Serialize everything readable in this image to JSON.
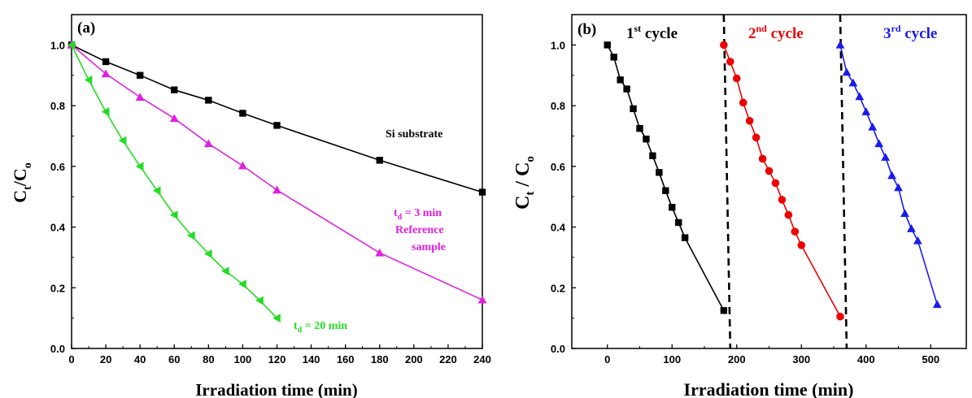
{
  "chart_data": [
    {
      "type": "line",
      "panel_label": "(a)",
      "xlabel": "Irradiation time (min)",
      "ylabel_main": "C",
      "ylabel_sub1": "t",
      "ylabel_mid": "/C",
      "ylabel_sub2": "o",
      "xlim": [
        0,
        240
      ],
      "ylim": [
        0,
        1.1
      ],
      "xticks": [
        "0",
        "20",
        "40",
        "60",
        "80",
        "100",
        "120",
        "140",
        "160",
        "180",
        "200",
        "220",
        "240"
      ],
      "yticks": [
        "0.0",
        "0.2",
        "0.4",
        "0.6",
        "0.8",
        "1.0"
      ],
      "series": [
        {
          "marker": "square",
          "color": "#000000",
          "x": [
            0,
            20,
            40,
            60,
            80,
            100,
            120,
            180,
            240
          ],
          "y": [
            1.0,
            0.945,
            0.9,
            0.852,
            0.818,
            0.775,
            0.735,
            0.62,
            0.515
          ]
        },
        {
          "marker": "triangle-up",
          "color": "#e020e0",
          "x": [
            0,
            20,
            40,
            60,
            80,
            100,
            120,
            180,
            240
          ],
          "y": [
            1.0,
            0.905,
            0.828,
            0.758,
            0.675,
            0.602,
            0.522,
            0.315,
            0.16
          ]
        },
        {
          "marker": "triangle-left",
          "color": "#22dd22",
          "x": [
            0,
            10,
            20,
            30,
            40,
            50,
            60,
            70,
            80,
            90,
            100,
            110,
            120
          ],
          "y": [
            1.0,
            0.885,
            0.78,
            0.685,
            0.6,
            0.52,
            0.44,
            0.372,
            0.312,
            0.255,
            0.212,
            0.158,
            0.1
          ]
        }
      ],
      "annotations": {
        "si_substrate": "Si substrate",
        "td3_main": "t",
        "td3_sub": "d",
        "td3_rest": " = 3 min",
        "reference": "Reference",
        "sample": "sample",
        "td20_main": "t",
        "td20_sub": "d",
        "td20_rest": " = 20 min"
      }
    },
    {
      "type": "line",
      "panel_label": "(b)",
      "xlabel": "Irradiation time (min)",
      "ylabel_main": "C",
      "ylabel_sub1": "t",
      "ylabel_mid": " / C",
      "ylabel_sub2": "o",
      "xlim": [
        -55,
        555
      ],
      "ylim": [
        0,
        1.1
      ],
      "xticks": [
        "0",
        "100",
        "200",
        "300",
        "400",
        "500"
      ],
      "yticks": [
        "0.0",
        "0.2",
        "0.4",
        "0.6",
        "0.8",
        "1.0"
      ],
      "dividers_x": [
        185,
        365
      ],
      "series": [
        {
          "marker": "square",
          "color": "#000000",
          "x": [
            0,
            10,
            20,
            30,
            40,
            50,
            60,
            70,
            80,
            90,
            100,
            110,
            120,
            180
          ],
          "y": [
            1.0,
            0.96,
            0.885,
            0.855,
            0.79,
            0.725,
            0.69,
            0.635,
            0.58,
            0.52,
            0.465,
            0.415,
            0.365,
            0.125
          ]
        },
        {
          "marker": "circle",
          "color": "#ee0000",
          "x": [
            180,
            190,
            200,
            210,
            220,
            230,
            240,
            250,
            260,
            270,
            280,
            290,
            300,
            360
          ],
          "y": [
            1.0,
            0.945,
            0.89,
            0.81,
            0.75,
            0.695,
            0.625,
            0.585,
            0.545,
            0.49,
            0.44,
            0.385,
            0.34,
            0.105
          ]
        },
        {
          "marker": "triangle-up",
          "color": "#1a1aee",
          "x": [
            360,
            370,
            380,
            390,
            400,
            410,
            420,
            430,
            440,
            450,
            460,
            470,
            480,
            510
          ],
          "y": [
            1.0,
            0.91,
            0.875,
            0.83,
            0.78,
            0.73,
            0.675,
            0.63,
            0.57,
            0.53,
            0.445,
            0.395,
            0.355,
            0.145
          ]
        }
      ],
      "cycle_labels": [
        {
          "num": "1",
          "sup": "st",
          "rest": " cycle",
          "color": "#000000"
        },
        {
          "num": "2",
          "sup": "nd",
          "rest": " cycle",
          "color": "#ee0000"
        },
        {
          "num": "3",
          "sup": "rd",
          "rest": " cycle",
          "color": "#1a1aee"
        }
      ]
    }
  ]
}
